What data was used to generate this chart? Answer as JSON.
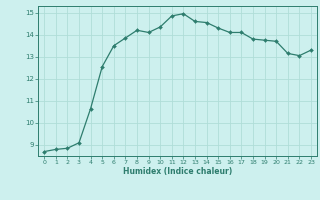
{
  "x": [
    0,
    1,
    2,
    3,
    4,
    5,
    6,
    7,
    8,
    9,
    10,
    11,
    12,
    13,
    14,
    15,
    16,
    17,
    18,
    19,
    20,
    21,
    22,
    23
  ],
  "y": [
    8.7,
    8.8,
    8.85,
    9.1,
    10.65,
    12.55,
    13.5,
    13.85,
    14.2,
    14.1,
    14.35,
    14.85,
    14.95,
    14.6,
    14.55,
    14.3,
    14.1,
    14.1,
    13.8,
    13.75,
    13.7,
    13.15,
    13.05,
    13.3
  ],
  "xlabel": "Humidex (Indice chaleur)",
  "ylim": [
    8.5,
    15.3
  ],
  "xlim": [
    -0.5,
    23.5
  ],
  "yticks": [
    9,
    10,
    11,
    12,
    13,
    14,
    15
  ],
  "xticks": [
    0,
    1,
    2,
    3,
    4,
    5,
    6,
    7,
    8,
    9,
    10,
    11,
    12,
    13,
    14,
    15,
    16,
    17,
    18,
    19,
    20,
    21,
    22,
    23
  ],
  "line_color": "#2e7d6e",
  "marker_color": "#2e7d6e",
  "bg_color": "#cdf0ee",
  "grid_color": "#b0ddd8",
  "figsize": [
    3.2,
    2.0
  ],
  "dpi": 100
}
